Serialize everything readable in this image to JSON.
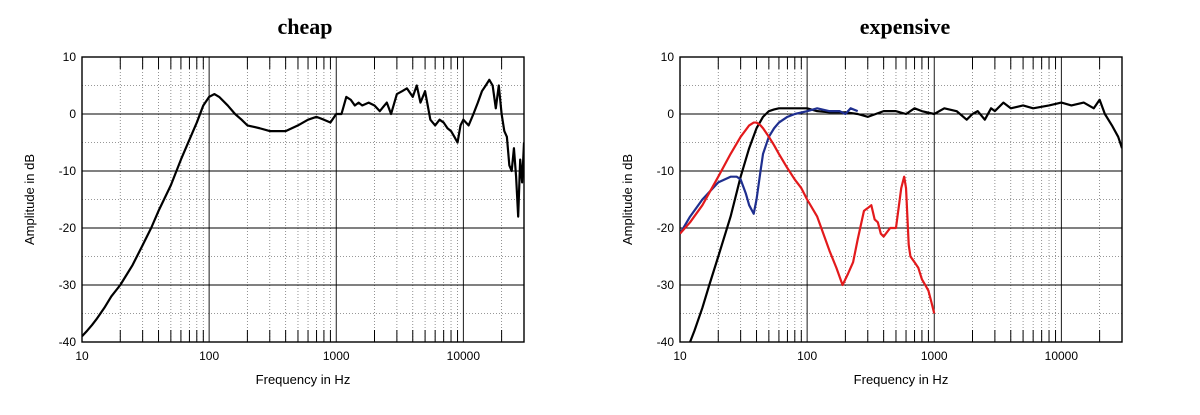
{
  "chart_data": [
    {
      "type": "line",
      "title": "cheap",
      "xlabel": "Frequency  in Hz",
      "ylabel": "Amplitude in dB",
      "xscale": "log",
      "xlim": [
        10,
        30000
      ],
      "ylim": [
        -40,
        10
      ],
      "xticks": [
        10,
        100,
        1000,
        10000
      ],
      "xtick_labels": [
        "10",
        "100",
        "1000",
        "10000"
      ],
      "yticks": [
        10,
        0,
        -10,
        -20,
        -30,
        -40
      ],
      "ytick_labels": [
        "10",
        "0",
        "-10",
        "-20",
        "-30",
        "-40"
      ],
      "grid": true,
      "series": [
        {
          "color": "#000000",
          "x": [
            10,
            11,
            12,
            13,
            15,
            17,
            20,
            25,
            30,
            35,
            40,
            50,
            60,
            70,
            80,
            90,
            100,
            110,
            120,
            140,
            160,
            180,
            200,
            250,
            300,
            350,
            400,
            500,
            600,
            700,
            800,
            900,
            1000,
            1100,
            1200,
            1300,
            1400,
            1500,
            1600,
            1800,
            2000,
            2200,
            2500,
            2700,
            3000,
            3300,
            3600,
            4000,
            4300,
            4600,
            5000,
            5500,
            6000,
            6500,
            7000,
            7500,
            8000,
            8500,
            9000,
            9500,
            10000,
            11000,
            12000,
            13000,
            14000,
            15000,
            16000,
            17000,
            18000,
            19000,
            20000,
            21000,
            22000,
            23000,
            24000,
            25000,
            26000,
            27000,
            28000,
            29000,
            30000
          ],
          "y": [
            -39,
            -38,
            -37,
            -36,
            -34,
            -32,
            -30,
            -26.5,
            -23,
            -20,
            -17,
            -12.5,
            -8,
            -4.5,
            -1.5,
            1.5,
            3,
            3.5,
            3,
            1.5,
            0,
            -1,
            -2,
            -2.5,
            -3,
            -3,
            -3,
            -2,
            -1,
            -0.5,
            -1,
            -1.5,
            0,
            0,
            3,
            2.5,
            1.5,
            2,
            1.5,
            2,
            1.5,
            0.5,
            2,
            0,
            3.5,
            4,
            4.5,
            3,
            5,
            2,
            4,
            -1,
            -2,
            -1,
            -1.5,
            -2.5,
            -3,
            -4,
            -5,
            -2,
            -1,
            -2,
            0,
            2,
            4,
            5,
            6,
            5,
            1,
            5,
            0,
            -3,
            -4,
            -9,
            -10,
            -6,
            -11,
            -18,
            -8,
            -12,
            -5
          ]
        }
      ]
    },
    {
      "type": "line",
      "title": "expensive",
      "xlabel": "Frequency in Hz",
      "ylabel": "Amplitude in dB",
      "xscale": "log",
      "xlim": [
        10,
        30000
      ],
      "ylim": [
        -40,
        10
      ],
      "xticks": [
        10,
        100,
        1000,
        10000
      ],
      "xtick_labels": [
        "10",
        "100",
        "1000",
        "10000"
      ],
      "yticks": [
        10,
        0,
        -10,
        -20,
        -30,
        -40
      ],
      "ytick_labels": [
        "10",
        "0",
        "-10",
        "-20",
        "-30",
        "-40"
      ],
      "grid": true,
      "series": [
        {
          "color": "#000000",
          "x": [
            12,
            13,
            15,
            17,
            20,
            25,
            30,
            35,
            40,
            45,
            50,
            55,
            60,
            70,
            80,
            100,
            120,
            150,
            200,
            250,
            300,
            400,
            500,
            600,
            700,
            800,
            1000,
            1200,
            1500,
            1800,
            2000,
            2200,
            2500,
            2800,
            3000,
            3500,
            4000,
            5000,
            6000,
            8000,
            10000,
            12000,
            15000,
            18000,
            20000,
            22000,
            25000,
            28000,
            30000
          ],
          "y": [
            -40,
            -38,
            -34,
            -30,
            -25,
            -18,
            -11,
            -6,
            -2.5,
            -0.5,
            0.5,
            0.8,
            1,
            1,
            1,
            1,
            0.5,
            0.3,
            0.3,
            0,
            -0.5,
            0.5,
            0.5,
            0,
            1,
            0.5,
            0,
            1,
            0.5,
            -1,
            0,
            0.5,
            -1,
            1,
            0.5,
            2,
            1,
            1.5,
            1,
            1.5,
            2,
            1.5,
            2,
            1,
            2.5,
            0,
            -2,
            -4,
            -6
          ]
        },
        {
          "color": "#1f2f8f",
          "x": [
            10,
            12,
            15,
            20,
            25,
            28,
            30,
            33,
            35,
            38,
            40,
            43,
            45,
            50,
            55,
            60,
            70,
            80,
            100,
            120,
            150,
            180,
            200,
            220,
            250
          ],
          "y": [
            -21,
            -18,
            -15,
            -12,
            -11,
            -11,
            -11.5,
            -14,
            -16,
            -17.5,
            -15,
            -10,
            -7,
            -4,
            -2.5,
            -1.5,
            -0.5,
            0,
            0.5,
            1,
            0.5,
            0.5,
            0,
            1,
            0.5
          ]
        },
        {
          "color": "#e31a1c",
          "x": [
            10,
            12,
            15,
            20,
            25,
            30,
            35,
            38,
            40,
            43,
            45,
            50,
            55,
            60,
            70,
            80,
            90,
            100,
            120,
            150,
            170,
            190,
            200,
            210,
            230,
            250,
            280,
            300,
            320,
            340,
            360,
            380,
            400,
            450,
            500,
            550,
            580,
            600,
            630,
            650,
            700,
            750,
            800,
            850,
            900,
            950,
            1000
          ],
          "y": [
            -21,
            -19,
            -16,
            -11,
            -7,
            -4,
            -2,
            -1.5,
            -1.5,
            -2,
            -2.5,
            -4,
            -5.5,
            -7,
            -9.5,
            -11.5,
            -13,
            -15,
            -18,
            -24,
            -27,
            -30,
            -29,
            -28,
            -26,
            -22,
            -17,
            -16.5,
            -16,
            -18.5,
            -19,
            -21,
            -21.5,
            -20,
            -20,
            -13,
            -11,
            -13,
            -23,
            -25,
            -26,
            -27,
            -29,
            -30,
            -31,
            -33,
            -35
          ]
        }
      ]
    }
  ]
}
